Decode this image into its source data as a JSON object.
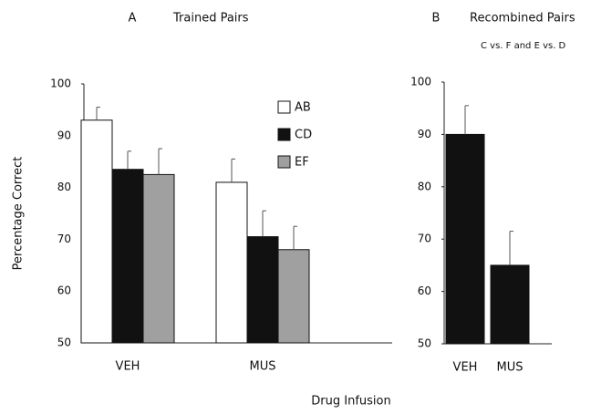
{
  "chart_data": [
    {
      "type": "bar",
      "panel_label": "A",
      "title": "Trained Pairs",
      "y_label": "Percentage Correct",
      "x_label": "Drug Infusion",
      "categories": [
        "VEH",
        "MUS"
      ],
      "series": [
        {
          "name": "AB",
          "color": "#ffffff",
          "values": [
            93,
            81
          ],
          "errors": [
            2.5,
            4.5
          ]
        },
        {
          "name": "CD",
          "color": "#111111",
          "values": [
            83.5,
            70.5
          ],
          "errors": [
            3.5,
            5
          ]
        },
        {
          "name": "EF",
          "color": "#a0a0a0",
          "values": [
            82.5,
            68
          ],
          "errors": [
            5,
            4.5
          ]
        }
      ],
      "ylim": [
        50,
        100
      ],
      "yticks": [
        50,
        60,
        70,
        80,
        90,
        100
      ],
      "legend": "top-right"
    },
    {
      "type": "bar",
      "panel_label": "B",
      "title": "Recombined Pairs",
      "subtitle": "C vs. F and E vs. D",
      "categories": [
        "VEH",
        "MUS"
      ],
      "series": [
        {
          "color": "#111111",
          "values": [
            90,
            65
          ],
          "errors": [
            5.5,
            6.5
          ]
        }
      ],
      "ylim": [
        50,
        100
      ],
      "yticks": [
        50,
        60,
        70,
        80,
        90,
        100
      ]
    }
  ]
}
